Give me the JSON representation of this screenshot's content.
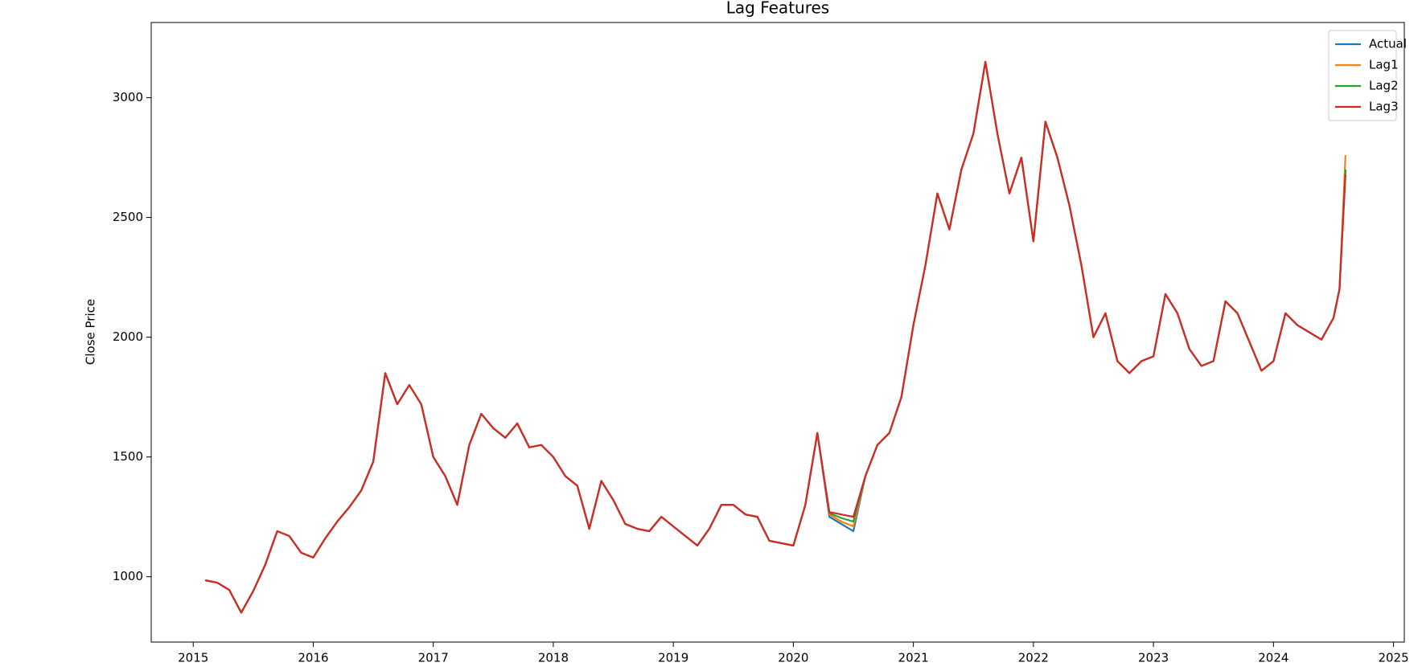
{
  "chart_data": {
    "type": "line",
    "title": "Lag Features",
    "y_label": "Close Price",
    "x": [
      2015.1,
      2015.2,
      2015.3,
      2015.4,
      2015.5,
      2015.6,
      2015.7,
      2015.8,
      2015.9,
      2016.0,
      2016.1,
      2016.2,
      2016.3,
      2016.4,
      2016.5,
      2016.6,
      2016.7,
      2016.8,
      2016.9,
      2017.0,
      2017.1,
      2017.2,
      2017.3,
      2017.4,
      2017.5,
      2017.6,
      2017.7,
      2017.8,
      2017.9,
      2018.0,
      2018.1,
      2018.2,
      2018.3,
      2018.4,
      2018.5,
      2018.6,
      2018.7,
      2018.8,
      2018.9,
      2019.0,
      2019.1,
      2019.2,
      2019.3,
      2019.4,
      2019.5,
      2019.6,
      2019.7,
      2019.8,
      2019.9,
      2020.0,
      2020.1,
      2020.2,
      2020.3,
      2020.4,
      2020.5,
      2020.6,
      2020.7,
      2020.8,
      2020.9,
      2021.0,
      2021.1,
      2021.2,
      2021.3,
      2021.4,
      2021.5,
      2021.6,
      2021.7,
      2021.8,
      2021.9,
      2022.0,
      2022.1,
      2022.2,
      2022.3,
      2022.4,
      2022.5,
      2022.6,
      2022.7,
      2022.8,
      2022.9,
      2023.0,
      2023.1,
      2023.2,
      2023.3,
      2023.4,
      2023.5,
      2023.6,
      2023.7,
      2023.8,
      2023.9,
      2024.0,
      2024.1,
      2024.2,
      2024.3,
      2024.4,
      2024.5,
      2024.55,
      2024.6
    ],
    "series": [
      {
        "name": "Actual",
        "color": "#1f77b4",
        "values": [
          985,
          975,
          945,
          850,
          940,
          1050,
          1190,
          1170,
          1100,
          1080,
          1160,
          1230,
          1290,
          1360,
          1480,
          1850,
          1720,
          1800,
          1720,
          1500,
          1420,
          1300,
          1550,
          1680,
          1620,
          1580,
          1640,
          1540,
          1550,
          1500,
          1420,
          1380,
          1200,
          1400,
          1320,
          1220,
          1200,
          1190,
          1250,
          1210,
          1170,
          1130,
          1200,
          1300,
          1300,
          1260,
          1250,
          1150,
          1140,
          1130,
          1300,
          1600,
          1250,
          1220,
          1190,
          1420,
          1550,
          1600,
          1750,
          2050,
          2300,
          2600,
          2450,
          2700,
          2850,
          3150,
          2850,
          2600,
          2750,
          2400,
          2900,
          2750,
          2550,
          2300,
          2000,
          2100,
          1900,
          1850,
          1900,
          1920,
          2180,
          2100,
          1950,
          1880,
          1900,
          2150,
          2100,
          1980,
          1860,
          1900,
          2100,
          2050,
          2020,
          1990,
          2080,
          2200,
          2700
        ]
      },
      {
        "name": "Lag1",
        "color": "#ff7f0e",
        "values": [
          985,
          975,
          945,
          850,
          940,
          1050,
          1190,
          1170,
          1100,
          1080,
          1160,
          1230,
          1290,
          1360,
          1480,
          1850,
          1720,
          1800,
          1720,
          1500,
          1420,
          1300,
          1550,
          1680,
          1620,
          1580,
          1640,
          1540,
          1550,
          1500,
          1420,
          1380,
          1200,
          1400,
          1320,
          1220,
          1200,
          1190,
          1250,
          1210,
          1170,
          1130,
          1200,
          1300,
          1300,
          1260,
          1250,
          1150,
          1140,
          1130,
          1300,
          1600,
          1260,
          1230,
          1210,
          1420,
          1550,
          1600,
          1750,
          2050,
          2300,
          2600,
          2450,
          2700,
          2850,
          3150,
          2850,
          2600,
          2750,
          2400,
          2900,
          2750,
          2550,
          2300,
          2000,
          2100,
          1900,
          1850,
          1900,
          1920,
          2180,
          2100,
          1950,
          1880,
          1900,
          2150,
          2100,
          1980,
          1860,
          1900,
          2100,
          2050,
          2020,
          1990,
          2080,
          2200,
          2760
        ]
      },
      {
        "name": "Lag2",
        "color": "#2ca02c",
        "values": [
          985,
          975,
          945,
          850,
          940,
          1050,
          1190,
          1170,
          1100,
          1080,
          1160,
          1230,
          1290,
          1360,
          1480,
          1850,
          1720,
          1800,
          1720,
          1500,
          1420,
          1300,
          1550,
          1680,
          1620,
          1580,
          1640,
          1540,
          1550,
          1500,
          1420,
          1380,
          1200,
          1400,
          1320,
          1220,
          1200,
          1190,
          1250,
          1210,
          1170,
          1130,
          1200,
          1300,
          1300,
          1260,
          1250,
          1150,
          1140,
          1130,
          1300,
          1600,
          1265,
          1245,
          1230,
          1420,
          1550,
          1600,
          1750,
          2050,
          2300,
          2600,
          2450,
          2700,
          2850,
          3150,
          2850,
          2600,
          2750,
          2400,
          2900,
          2750,
          2550,
          2300,
          2000,
          2100,
          1900,
          1850,
          1900,
          1920,
          2180,
          2100,
          1950,
          1880,
          1900,
          2150,
          2100,
          1980,
          1860,
          1900,
          2100,
          2050,
          2020,
          1990,
          2080,
          2200,
          2700
        ]
      },
      {
        "name": "Lag3",
        "color": "#d62728",
        "values": [
          985,
          975,
          945,
          850,
          940,
          1050,
          1190,
          1170,
          1100,
          1080,
          1160,
          1230,
          1290,
          1360,
          1480,
          1850,
          1720,
          1800,
          1720,
          1500,
          1420,
          1300,
          1550,
          1680,
          1620,
          1580,
          1640,
          1540,
          1550,
          1500,
          1420,
          1380,
          1200,
          1400,
          1320,
          1220,
          1200,
          1190,
          1250,
          1210,
          1170,
          1130,
          1200,
          1300,
          1300,
          1260,
          1250,
          1150,
          1140,
          1130,
          1300,
          1600,
          1270,
          1260,
          1250,
          1420,
          1550,
          1600,
          1750,
          2050,
          2300,
          2600,
          2450,
          2700,
          2850,
          3150,
          2850,
          2600,
          2750,
          2400,
          2900,
          2750,
          2550,
          2300,
          2000,
          2100,
          1900,
          1850,
          1900,
          1920,
          2180,
          2100,
          1950,
          1880,
          1900,
          2150,
          2100,
          1980,
          1860,
          1900,
          2100,
          2050,
          2020,
          1990,
          2080,
          2200,
          2680
        ]
      }
    ],
    "xlim": [
      2014.65,
      2025.09
    ],
    "xticks": [
      2015,
      2016,
      2017,
      2018,
      2019,
      2020,
      2021,
      2022,
      2023,
      2024,
      2025
    ],
    "ylim": [
      727,
      3314
    ],
    "yticks": [
      1000,
      1500,
      2000,
      2500,
      3000
    ],
    "grid": false,
    "legend": "upper right"
  }
}
